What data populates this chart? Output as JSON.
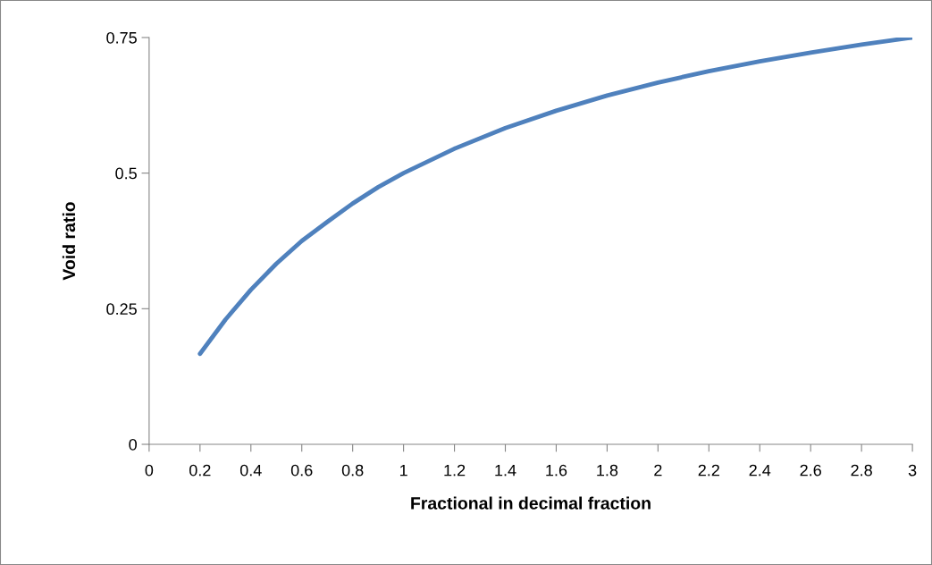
{
  "chart_data": {
    "type": "line",
    "xlabel": "Fractional in decimal fraction",
    "ylabel": "Void ratio",
    "x": [
      0.2,
      0.3,
      0.4,
      0.5,
      0.6,
      0.7,
      0.8,
      0.9,
      1.0,
      1.2,
      1.4,
      1.6,
      1.8,
      2.0,
      2.2,
      2.4,
      2.6,
      2.8,
      3.0
    ],
    "series": [
      {
        "color": "#4f81bd",
        "values": [
          0.167,
          0.23,
          0.285,
          0.333,
          0.375,
          0.41,
          0.444,
          0.474,
          0.5,
          0.545,
          0.583,
          0.615,
          0.643,
          0.667,
          0.688,
          0.706,
          0.722,
          0.737,
          0.75
        ]
      }
    ],
    "xlim": [
      0,
      3
    ],
    "xticks": [
      0,
      0.2,
      0.4,
      0.6,
      0.8,
      1,
      1.2,
      1.4,
      1.6,
      1.8,
      2,
      2.2,
      2.4,
      2.6,
      2.8,
      3
    ],
    "ylim": [
      0,
      0.75
    ],
    "yticks": [
      0,
      0.25,
      0.5,
      0.75
    ],
    "grid": false,
    "marker": "none",
    "line_style": "solid"
  }
}
